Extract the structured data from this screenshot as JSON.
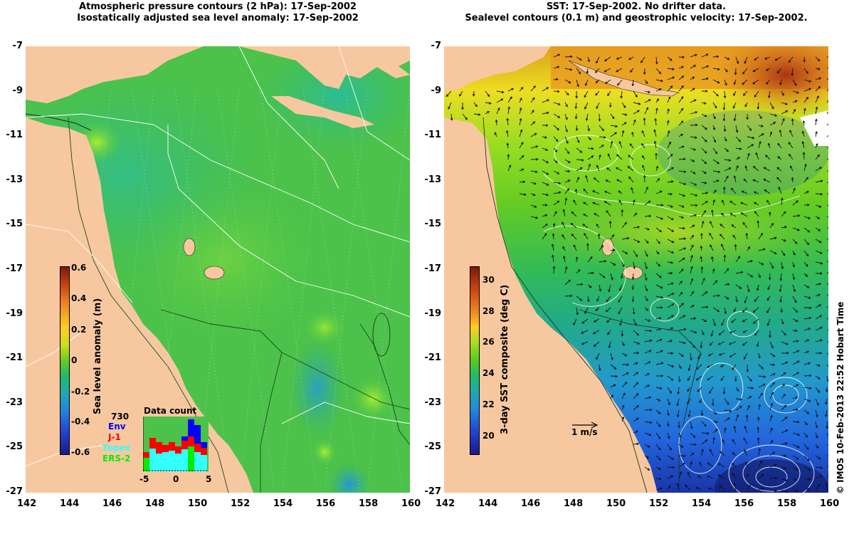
{
  "left_panel": {
    "title_line1": "Atmospheric pressure contours (2 hPa): 17-Sep-2002",
    "title_line2": "Isostatically adjusted sea level anomaly: 17-Sep-2002",
    "x_ticks": [
      "142",
      "144",
      "146",
      "148",
      "150",
      "152",
      "154",
      "156",
      "158",
      "160"
    ],
    "y_ticks": [
      "-7",
      "-9",
      "-11",
      "-13",
      "-15",
      "-17",
      "-19",
      "-21",
      "-23",
      "-25",
      "-27"
    ],
    "colorbar": {
      "label": "Sea level anomaly (m)",
      "ticks": [
        "0.6",
        "0.4",
        "0.2",
        "0",
        "-0.2",
        "-0.4",
        "-0.6"
      ]
    },
    "data_count": {
      "title": "Data count",
      "total": "730",
      "legend": [
        {
          "name": "Env",
          "color": "#0000ff"
        },
        {
          "name": "J-1",
          "color": "#ff0000"
        },
        {
          "name": "Topex",
          "color": "#33ffff"
        },
        {
          "name": "ERS-2",
          "color": "#00ee00"
        }
      ],
      "x_ticks": [
        "-5",
        "0",
        "5"
      ]
    }
  },
  "right_panel": {
    "title_line1": "SST: 17-Sep-2002. No drifter data.",
    "title_line2": "Sealevel contours (0.1 m) and geostrophic velocity: 17-Sep-2002.",
    "x_ticks": [
      "142",
      "144",
      "146",
      "148",
      "150",
      "152",
      "154",
      "156",
      "158",
      "160"
    ],
    "y_ticks": [
      "-7",
      "-9",
      "-11",
      "-13",
      "-15",
      "-17",
      "-19",
      "-21",
      "-23",
      "-25",
      "-27"
    ],
    "colorbar": {
      "label": "3-day SST composite (deg C)",
      "ticks": [
        "30",
        "28",
        "26",
        "24",
        "22",
        "20"
      ]
    },
    "scale_arrow_label": "1 m/s"
  },
  "footer_credit": "© IMOS 10-Feb-2013 22:52 Hobart Time",
  "colors": {
    "land": "#f7c8a0",
    "ocean_green": "#44cc44",
    "sst_orange": "#e8a020"
  }
}
